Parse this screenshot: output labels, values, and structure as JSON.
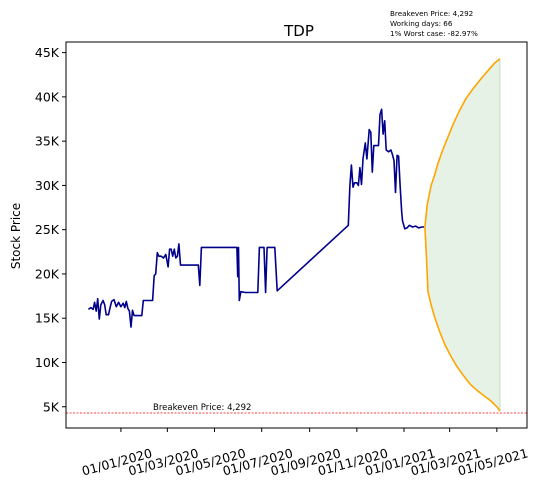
{
  "chart_data": {
    "type": "line",
    "title": "TDP",
    "xlabel": "",
    "ylabel": "Stock Price",
    "info_lines": [
      "Breakeven Price: 4,292",
      "Working days: 66",
      "1% Worst case: -82.97%"
    ],
    "breakeven": {
      "value": 4292,
      "label": "Breakeven Price: 4,292"
    },
    "x_ticks": [
      {
        "date": "2020-01-01",
        "label": "01/01/2020"
      },
      {
        "date": "2020-03-01",
        "label": "01/03/2020"
      },
      {
        "date": "2020-05-01",
        "label": "01/05/2020"
      },
      {
        "date": "2020-07-01",
        "label": "01/07/2020"
      },
      {
        "date": "2020-09-01",
        "label": "01/09/2020"
      },
      {
        "date": "2020-11-01",
        "label": "01/11/2020"
      },
      {
        "date": "2021-01-01",
        "label": "01/01/2021"
      },
      {
        "date": "2021-03-01",
        "label": "01/03/2021"
      },
      {
        "date": "2021-05-01",
        "label": "01/05/2021"
      }
    ],
    "y_ticks": [
      {
        "value": 5000,
        "label": "5K"
      },
      {
        "value": 10000,
        "label": "10K"
      },
      {
        "value": 15000,
        "label": "15K"
      },
      {
        "value": 20000,
        "label": "20K"
      },
      {
        "value": 25000,
        "label": "25K"
      },
      {
        "value": 30000,
        "label": "30K"
      },
      {
        "value": 35000,
        "label": "35K"
      },
      {
        "value": 40000,
        "label": "40K"
      },
      {
        "value": 45000,
        "label": "45K"
      }
    ],
    "xlim": [
      "2019-10-22",
      "2021-06-09"
    ],
    "ylim": [
      2600,
      46200
    ],
    "grid": false,
    "colors": {
      "history": "#00008b",
      "projection": "#ffa500",
      "band": "#e5f2e5",
      "breakeven": "#ff0000"
    },
    "series": [
      {
        "role": "history",
        "points": [
          [
            "2019-11-20",
            16000
          ],
          [
            "2019-11-23",
            16200
          ],
          [
            "2019-11-26",
            16000
          ],
          [
            "2019-11-28",
            16800
          ],
          [
            "2019-11-30",
            15800
          ],
          [
            "2019-12-02",
            17200
          ],
          [
            "2019-12-04",
            14900
          ],
          [
            "2019-12-06",
            16500
          ],
          [
            "2019-12-09",
            17000
          ],
          [
            "2019-12-11",
            16500
          ],
          [
            "2019-12-13",
            15400
          ],
          [
            "2019-12-16",
            15400
          ],
          [
            "2019-12-18",
            16200
          ],
          [
            "2019-12-20",
            16900
          ],
          [
            "2019-12-23",
            17100
          ],
          [
            "2019-12-26",
            16300
          ],
          [
            "2019-12-29",
            16800
          ],
          [
            "2020-01-01",
            16300
          ],
          [
            "2020-01-04",
            16700
          ],
          [
            "2020-01-06",
            16200
          ],
          [
            "2020-01-08",
            16900
          ],
          [
            "2020-01-10",
            16100
          ],
          [
            "2020-01-12",
            15800
          ],
          [
            "2020-01-14",
            14000
          ],
          [
            "2020-01-16",
            15900
          ],
          [
            "2020-01-18",
            15300
          ],
          [
            "2020-01-21",
            15300
          ],
          [
            "2020-01-25",
            15300
          ],
          [
            "2020-01-28",
            15300
          ],
          [
            "2020-01-30",
            17000
          ],
          [
            "2020-02-04",
            17000
          ],
          [
            "2020-02-08",
            17000
          ],
          [
            "2020-02-11",
            17000
          ],
          [
            "2020-02-13",
            19800
          ],
          [
            "2020-02-15",
            20000
          ],
          [
            "2020-02-17",
            22400
          ],
          [
            "2020-02-19",
            22000
          ],
          [
            "2020-02-22",
            22000
          ],
          [
            "2020-02-25",
            21800
          ],
          [
            "2020-02-28",
            22200
          ],
          [
            "2020-03-02",
            20800
          ],
          [
            "2020-03-04",
            22800
          ],
          [
            "2020-03-06",
            22800
          ],
          [
            "2020-03-08",
            22000
          ],
          [
            "2020-03-10",
            22800
          ],
          [
            "2020-03-12",
            21800
          ],
          [
            "2020-03-14",
            22000
          ],
          [
            "2020-03-16",
            23400
          ],
          [
            "2020-03-18",
            21000
          ],
          [
            "2020-03-22",
            21000
          ],
          [
            "2020-03-28",
            21000
          ],
          [
            "2020-04-04",
            21000
          ],
          [
            "2020-04-10",
            21000
          ],
          [
            "2020-04-12",
            18700
          ],
          [
            "2020-04-14",
            23000
          ],
          [
            "2020-04-20",
            23000
          ],
          [
            "2020-04-28",
            23000
          ],
          [
            "2020-05-06",
            23000
          ],
          [
            "2020-05-14",
            23000
          ],
          [
            "2020-05-20",
            23000
          ],
          [
            "2020-05-27",
            23000
          ],
          [
            "2020-05-30",
            23000
          ],
          [
            "2020-05-31",
            19700
          ],
          [
            "2020-06-01",
            23000
          ],
          [
            "2020-06-02",
            17000
          ],
          [
            "2020-06-04",
            18000
          ],
          [
            "2020-06-10",
            17900
          ],
          [
            "2020-06-16",
            17900
          ],
          [
            "2020-06-22",
            17900
          ],
          [
            "2020-06-26",
            17900
          ],
          [
            "2020-06-28",
            23000
          ],
          [
            "2020-07-02",
            23000
          ],
          [
            "2020-07-04",
            23000
          ],
          [
            "2020-07-06",
            17900
          ],
          [
            "2020-07-08",
            23000
          ],
          [
            "2020-07-12",
            23000
          ],
          [
            "2020-07-18",
            23000
          ],
          [
            "2020-07-21",
            18100
          ],
          [
            "2020-10-21",
            25500
          ],
          [
            "2020-10-23",
            30000
          ],
          [
            "2020-10-25",
            32300
          ],
          [
            "2020-10-27",
            29800
          ],
          [
            "2020-10-29",
            30300
          ],
          [
            "2020-11-01",
            30300
          ],
          [
            "2020-11-03",
            30000
          ],
          [
            "2020-11-05",
            32000
          ],
          [
            "2020-11-07",
            30100
          ],
          [
            "2020-11-09",
            33000
          ],
          [
            "2020-11-12",
            34800
          ],
          [
            "2020-11-14",
            33000
          ],
          [
            "2020-11-17",
            36300
          ],
          [
            "2020-11-19",
            36000
          ],
          [
            "2020-11-21",
            31500
          ],
          [
            "2020-11-23",
            34500
          ],
          [
            "2020-11-26",
            34500
          ],
          [
            "2020-11-29",
            34500
          ],
          [
            "2020-12-01",
            38000
          ],
          [
            "2020-12-03",
            38600
          ],
          [
            "2020-12-05",
            35800
          ],
          [
            "2020-12-07",
            37300
          ],
          [
            "2020-12-09",
            34000
          ],
          [
            "2020-12-12",
            33800
          ],
          [
            "2020-12-15",
            34000
          ],
          [
            "2020-12-17",
            33500
          ],
          [
            "2020-12-19",
            32800
          ],
          [
            "2020-12-21",
            29200
          ],
          [
            "2020-12-23",
            33400
          ],
          [
            "2020-12-25",
            33300
          ],
          [
            "2020-12-27",
            30000
          ],
          [
            "2020-12-29",
            27000
          ],
          [
            "2020-12-30",
            26000
          ],
          [
            "2021-01-02",
            25100
          ],
          [
            "2021-01-05",
            25200
          ],
          [
            "2021-01-08",
            25500
          ],
          [
            "2021-01-12",
            25300
          ],
          [
            "2021-01-16",
            25400
          ],
          [
            "2021-01-20",
            25200
          ],
          [
            "2021-01-24",
            25300
          ],
          [
            "2021-01-27",
            25300
          ]
        ]
      },
      {
        "role": "upper",
        "points": [
          [
            "2021-01-28",
            25300
          ],
          [
            "2021-01-31",
            27800
          ],
          [
            "2021-02-05",
            30000
          ],
          [
            "2021-02-09",
            31000
          ],
          [
            "2021-02-14",
            32500
          ],
          [
            "2021-02-20",
            34000
          ],
          [
            "2021-02-27",
            35500
          ],
          [
            "2021-03-06",
            37000
          ],
          [
            "2021-03-14",
            38500
          ],
          [
            "2021-03-22",
            39800
          ],
          [
            "2021-04-01",
            41000
          ],
          [
            "2021-04-10",
            42000
          ],
          [
            "2021-04-20",
            43000
          ],
          [
            "2021-04-28",
            43800
          ],
          [
            "2021-05-05",
            44300
          ]
        ]
      },
      {
        "role": "lower",
        "points": [
          [
            "2021-01-28",
            25300
          ],
          [
            "2021-01-30",
            22000
          ],
          [
            "2021-02-01",
            18000
          ],
          [
            "2021-02-05",
            16500
          ],
          [
            "2021-02-10",
            15000
          ],
          [
            "2021-02-16",
            13500
          ],
          [
            "2021-02-23",
            12000
          ],
          [
            "2021-03-02",
            10800
          ],
          [
            "2021-03-10",
            9600
          ],
          [
            "2021-03-19",
            8500
          ],
          [
            "2021-03-28",
            7500
          ],
          [
            "2021-04-06",
            6800
          ],
          [
            "2021-04-15",
            6200
          ],
          [
            "2021-04-24",
            5600
          ],
          [
            "2021-05-02",
            4900
          ],
          [
            "2021-05-05",
            4500
          ]
        ]
      }
    ]
  }
}
